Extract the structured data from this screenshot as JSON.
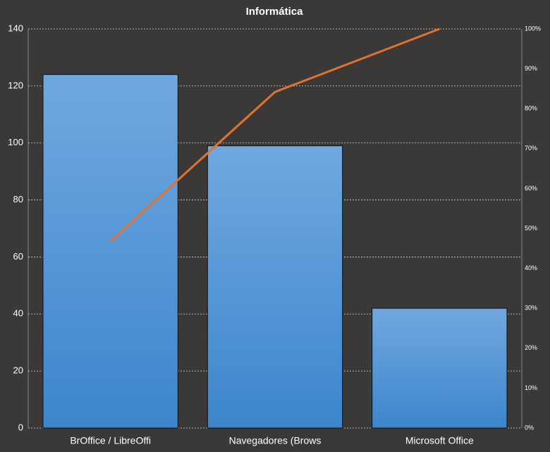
{
  "chart_data": {
    "type": "pareto",
    "title": "Informática",
    "categories": [
      "BrOffice / LibreOffi",
      "Navegadores (Brows",
      "Microsoft Office"
    ],
    "series": [
      {
        "type": "bar",
        "color": "#4a90d6",
        "values": [
          124,
          99,
          42
        ]
      },
      {
        "type": "line",
        "axis": "y2",
        "color": "#e2732f",
        "values": [
          46.8,
          84.2,
          100
        ]
      }
    ],
    "ylim": [
      0,
      140
    ],
    "yticks": [
      0,
      20,
      40,
      60,
      80,
      100,
      120,
      140
    ],
    "y2lim": [
      0,
      100
    ],
    "y2ticks": [
      {
        "value": 0,
        "label": "0%"
      },
      {
        "value": 10,
        "label": "10%"
      },
      {
        "value": 20,
        "label": "20%"
      },
      {
        "value": 30,
        "label": "30%"
      },
      {
        "value": 40,
        "label": "40%"
      },
      {
        "value": 50,
        "label": "50%"
      },
      {
        "value": 60,
        "label": "60%"
      },
      {
        "value": 70,
        "label": "70%"
      },
      {
        "value": 80,
        "label": "80%"
      },
      {
        "value": 90,
        "label": "90%"
      },
      {
        "value": 100,
        "label": "100%"
      }
    ],
    "grid": true
  }
}
